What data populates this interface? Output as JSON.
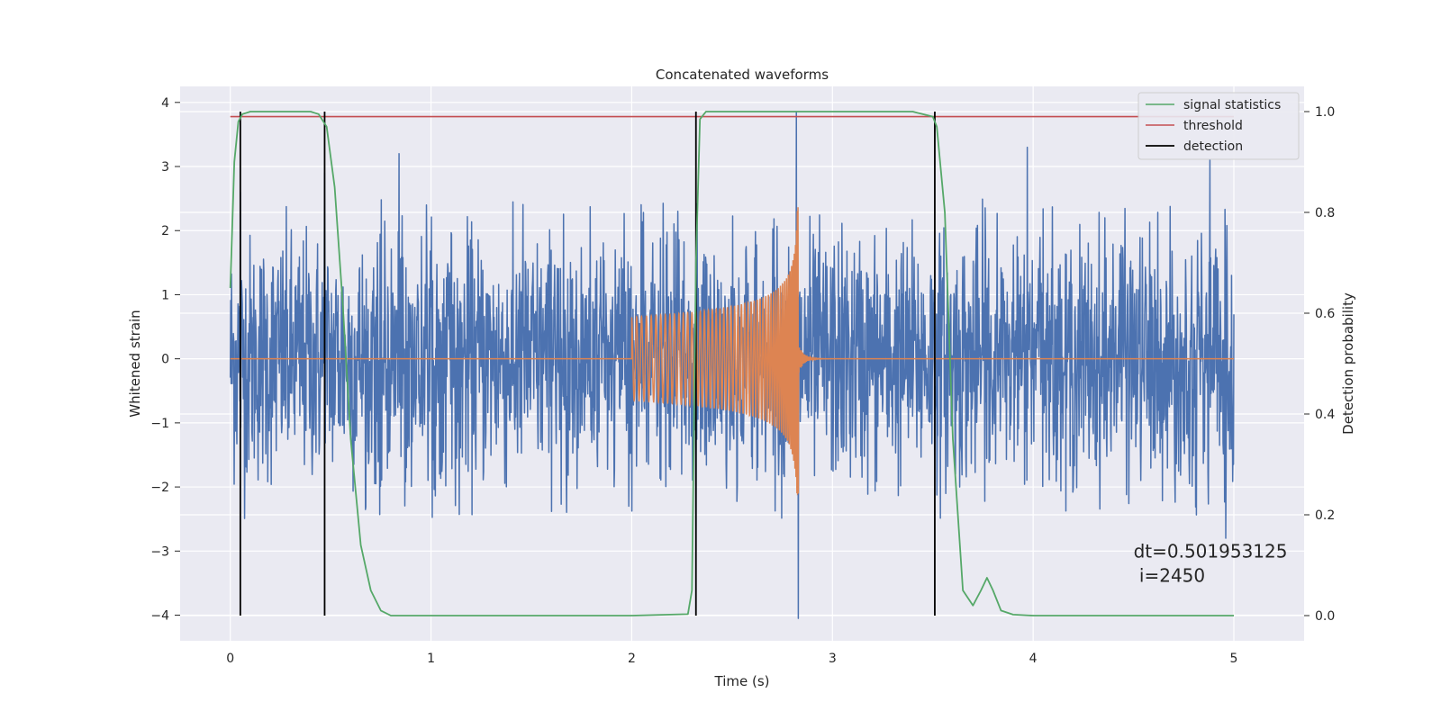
{
  "chart_data": {
    "type": "line",
    "title": "Concatenated waveforms",
    "xlabel": "Time (s)",
    "ylabel": "Whitened strain",
    "y2label": "Detection probability",
    "xlim": [
      -0.25,
      5.35
    ],
    "ylim": [
      -4.4,
      4.25
    ],
    "y2lim": [
      -0.05,
      1.05
    ],
    "xticks": [
      "0",
      "1",
      "2",
      "3",
      "4",
      "5"
    ],
    "yticks": [
      "−4",
      "−3",
      "−2",
      "−1",
      "0",
      "1",
      "2",
      "3",
      "4"
    ],
    "y2ticks": [
      "0.0",
      "0.2",
      "0.4",
      "0.6",
      "0.8",
      "1.0"
    ],
    "grid": true,
    "legend_position": "top-right",
    "colors": {
      "strain": "#4c72b0",
      "waveform": "#dd8452",
      "signal_statistics": "#55a868",
      "threshold": "#c44e52",
      "detection": "#000000",
      "background": "#eaeaf2"
    },
    "series": [
      {
        "name": "",
        "axis": "left",
        "kind": "noise",
        "x_range": [
          0,
          5
        ],
        "sample_count": 2600,
        "amplitude_envelope": [
          [
            0.0,
            2.5
          ],
          [
            5.0,
            2.5
          ]
        ],
        "peak_values": [
          {
            "x": 0.05,
            "y": 2.6
          },
          {
            "x": 0.47,
            "y": 2.9
          },
          {
            "x": 0.84,
            "y": 3.2
          },
          {
            "x": 2.32,
            "y": -3.0
          },
          {
            "x": 2.82,
            "y": 3.85
          },
          {
            "x": 2.83,
            "y": -4.05
          },
          {
            "x": 3.97,
            "y": 3.3
          },
          {
            "x": 4.88,
            "y": 3.1
          },
          {
            "x": 4.96,
            "y": -2.8
          }
        ]
      },
      {
        "name": "",
        "axis": "left",
        "kind": "chirp",
        "x_range": [
          0,
          5
        ],
        "chirp_start": 2.0,
        "chirp_end": 2.83,
        "ringdown_end": 3.0,
        "amplitude_start": 0.65,
        "amplitude_peak": 2.4,
        "amplitude_min": -2.1
      },
      {
        "name": "signal statistics",
        "axis": "right",
        "x": [
          0.0,
          0.02,
          0.04,
          0.06,
          0.1,
          0.2,
          0.4,
          0.44,
          0.48,
          0.52,
          0.56,
          0.6,
          0.65,
          0.7,
          0.75,
          0.8,
          1.0,
          2.0,
          2.28,
          2.3,
          2.32,
          2.34,
          2.37,
          2.5,
          3.4,
          3.5,
          3.52,
          3.56,
          3.6,
          3.65,
          3.7,
          3.74,
          3.77,
          3.8,
          3.84,
          3.9,
          4.0,
          5.0
        ],
        "y": [
          0.65,
          0.9,
          0.98,
          0.995,
          1.0,
          1.0,
          1.0,
          0.995,
          0.97,
          0.85,
          0.62,
          0.35,
          0.14,
          0.05,
          0.01,
          0.0,
          0.0,
          0.0,
          0.003,
          0.05,
          0.7,
          0.985,
          1.0,
          1.0,
          1.0,
          0.99,
          0.97,
          0.8,
          0.35,
          0.05,
          0.02,
          0.05,
          0.075,
          0.05,
          0.01,
          0.002,
          0.0,
          0.0
        ]
      },
      {
        "name": "threshold",
        "axis": "right",
        "x": [
          0.0,
          5.0
        ],
        "y": [
          0.99,
          0.99
        ]
      }
    ],
    "detections": {
      "name": "detection",
      "x": [
        0.05,
        0.47,
        2.32,
        3.51
      ],
      "y_range": [
        0.0,
        1.0
      ]
    },
    "annotation": {
      "lines": [
        "dt=0.501953125",
        " i=2450"
      ],
      "x": 4.5,
      "y": 0.115
    },
    "legend": [
      "signal statistics",
      "threshold",
      "detection"
    ]
  }
}
